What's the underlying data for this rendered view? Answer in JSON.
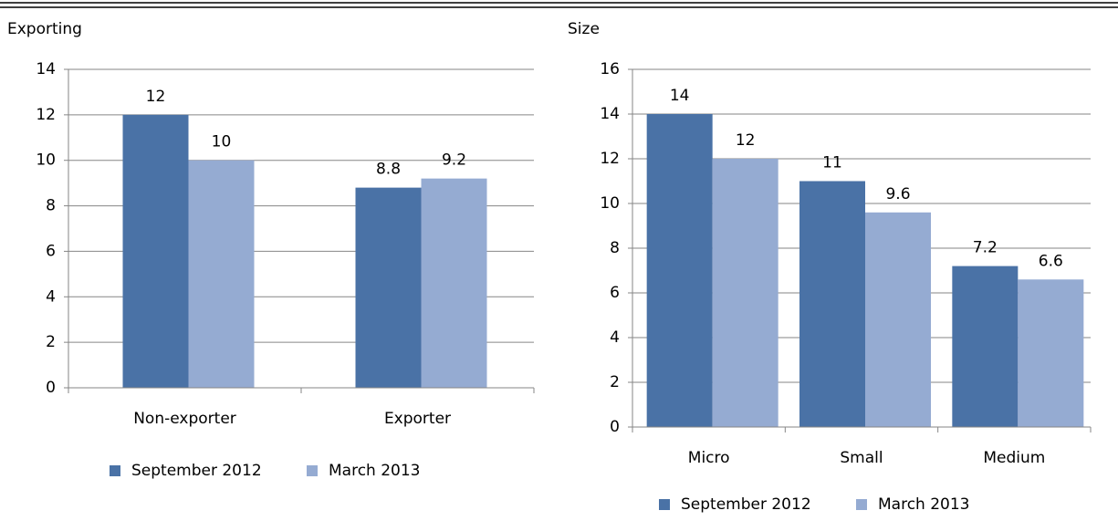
{
  "chart_data": [
    {
      "type": "bar",
      "title": "Exporting",
      "categories": [
        "Non-exporter",
        "Exporter"
      ],
      "series": [
        {
          "name": "September 2012",
          "color": "#4a72a6",
          "values": [
            12,
            8.8
          ]
        },
        {
          "name": "March 2013",
          "color": "#95abd2",
          "values": [
            10,
            9.2
          ]
        }
      ],
      "ylim": [
        0,
        14
      ],
      "yticks": [
        0,
        2,
        4,
        6,
        8,
        10,
        12,
        14
      ],
      "grid": true,
      "legend": "bottom"
    },
    {
      "type": "bar",
      "title": "Size",
      "categories": [
        "Micro",
        "Small",
        "Medium"
      ],
      "series": [
        {
          "name": "September 2012",
          "color": "#4a72a6",
          "values": [
            14,
            11,
            7.2
          ]
        },
        {
          "name": "March 2013",
          "color": "#95abd2",
          "values": [
            12,
            9.6,
            6.6
          ]
        }
      ],
      "ylim": [
        0,
        16
      ],
      "yticks": [
        0,
        2,
        4,
        6,
        8,
        10,
        12,
        14,
        16
      ],
      "grid": true,
      "legend": "bottom"
    }
  ]
}
